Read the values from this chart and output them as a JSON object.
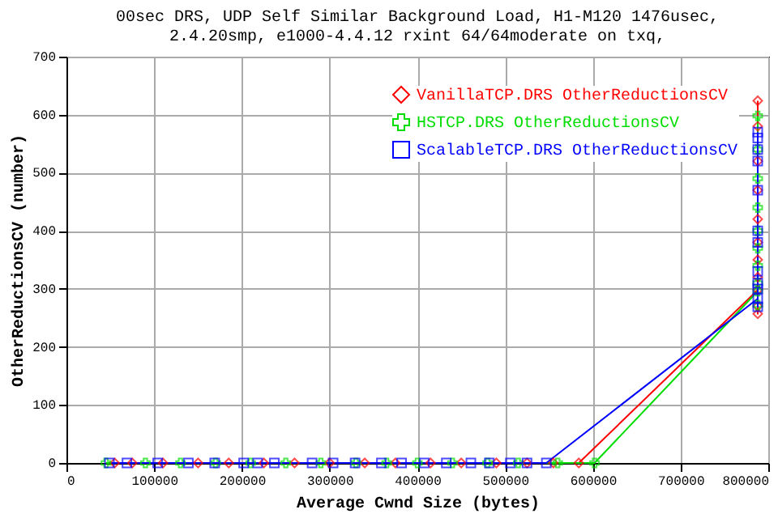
{
  "chart_data": {
    "type": "line",
    "title": [
      "00sec DRS, UDP Self Similar Background Load, H1-M120 1476usec,",
      "2.4.20smp, e1000-4.4.12 rxint 64/64moderate on txq,"
    ],
    "xlabel": "Average Cwnd Size (bytes)",
    "ylabel": "OtherReductionsCV (number)",
    "xlim": [
      0,
      800000
    ],
    "xticks": [
      0,
      100000,
      200000,
      300000,
      400000,
      500000,
      600000,
      700000,
      800000
    ],
    "ylim": [
      0,
      700
    ],
    "yticks": [
      0,
      100,
      200,
      300,
      400,
      500,
      600,
      700
    ],
    "grid": true,
    "legend": "top right",
    "line_style": "solid",
    "series": [
      {
        "name": "VanillaTCP.DRS OtherReductionsCV",
        "color": "#ff0000",
        "marker": "diamond",
        "x": [
          55000,
          75000,
          110000,
          150000,
          185000,
          225000,
          260000,
          300000,
          340000,
          375000,
          415000,
          450000,
          490000,
          525000,
          555000,
          584000,
          788000,
          788000,
          788000,
          788000,
          788000,
          788000,
          788000,
          788000,
          788000,
          788000,
          788000
        ],
        "values": [
          0,
          0,
          0,
          0,
          0,
          0,
          0,
          0,
          0,
          0,
          0,
          0,
          0,
          0,
          0,
          0,
          298,
          257,
          270,
          320,
          350,
          380,
          420,
          470,
          520,
          580,
          624
        ]
      },
      {
        "name": "HSTCP.DRS OtherReductionsCV",
        "color": "#00dd00",
        "marker": "cross",
        "x": [
          45000,
          90000,
          130000,
          170000,
          210000,
          250000,
          290000,
          330000,
          365000,
          400000,
          440000,
          480000,
          515000,
          560000,
          602000,
          788000,
          788000,
          788000,
          788000,
          788000,
          788000,
          788000,
          788000,
          788000,
          788000
        ],
        "values": [
          0,
          0,
          0,
          0,
          0,
          0,
          0,
          0,
          0,
          0,
          0,
          0,
          0,
          0,
          0,
          296,
          272,
          310,
          340,
          370,
          400,
          440,
          490,
          540,
          598
        ]
      },
      {
        "name": "ScalableTCP.DRS OtherReductionsCV",
        "color": "#0000ff",
        "marker": "square",
        "x": [
          49000,
          69000,
          104000,
          139000,
          169000,
          202000,
          218000,
          237000,
          280000,
          304000,
          329000,
          359000,
          382000,
          408000,
          433000,
          461000,
          482000,
          506000,
          525000,
          547000,
          788000,
          788000,
          788000,
          788000,
          788000,
          788000,
          788000,
          788000,
          788000,
          788000,
          788000,
          788000
        ],
        "values": [
          0,
          0,
          0,
          0,
          0,
          0,
          0,
          0,
          0,
          0,
          0,
          0,
          0,
          0,
          0,
          0,
          0,
          0,
          0,
          0,
          283,
          269,
          310,
          300,
          330,
          380,
          400,
          470,
          520,
          540,
          560,
          570
        ]
      }
    ]
  }
}
